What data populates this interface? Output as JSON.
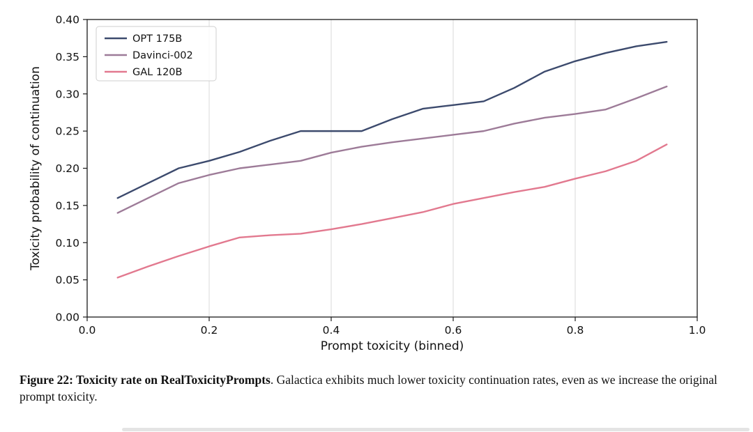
{
  "figure": {
    "caption_bold": "Figure 22: Toxicity rate on RealToxicityPrompts",
    "caption_rest": ". Galactica exhibits much lower toxicity continuation rates, even as we increase the original prompt toxicity."
  },
  "chart_data": {
    "type": "line",
    "title": "",
    "xlabel": "Prompt toxicity (binned)",
    "ylabel": "Toxicity probability of continuation",
    "xlim": [
      0.0,
      1.0
    ],
    "ylim": [
      0.0,
      0.4
    ],
    "xticks": [
      0.0,
      0.2,
      0.4,
      0.6,
      0.8,
      1.0
    ],
    "yticks": [
      0.0,
      0.05,
      0.1,
      0.15,
      0.2,
      0.25,
      0.3,
      0.35,
      0.4
    ],
    "xtick_labels": [
      "0.0",
      "0.2",
      "0.4",
      "0.6",
      "0.8",
      "1.0"
    ],
    "ytick_labels": [
      "0.00",
      "0.05",
      "0.10",
      "0.15",
      "0.20",
      "0.25",
      "0.30",
      "0.35",
      "0.40"
    ],
    "grid": "vertical-light",
    "legend_position": "upper-left",
    "x": [
      0.05,
      0.1,
      0.15,
      0.2,
      0.25,
      0.3,
      0.35,
      0.4,
      0.45,
      0.5,
      0.55,
      0.6,
      0.65,
      0.7,
      0.75,
      0.8,
      0.85,
      0.9,
      0.95
    ],
    "series": [
      {
        "name": "OPT 175B",
        "color": "#3c4a6d",
        "values": [
          0.16,
          0.18,
          0.2,
          0.21,
          0.222,
          0.237,
          0.25,
          0.25,
          0.25,
          0.266,
          0.28,
          0.285,
          0.29,
          0.308,
          0.33,
          0.344,
          0.355,
          0.364,
          0.37
        ]
      },
      {
        "name": "Davinci-002",
        "color": "#9d7b98",
        "values": [
          0.14,
          0.16,
          0.18,
          0.191,
          0.2,
          0.205,
          0.21,
          0.221,
          0.229,
          0.235,
          0.24,
          0.245,
          0.25,
          0.26,
          0.268,
          0.273,
          0.279,
          0.294,
          0.31
        ]
      },
      {
        "name": "GAL 120B",
        "color": "#e2798f",
        "values": [
          0.053,
          0.068,
          0.082,
          0.095,
          0.107,
          0.11,
          0.112,
          0.118,
          0.125,
          0.133,
          0.141,
          0.152,
          0.16,
          0.168,
          0.175,
          0.186,
          0.196,
          0.21,
          0.232
        ]
      }
    ]
  }
}
